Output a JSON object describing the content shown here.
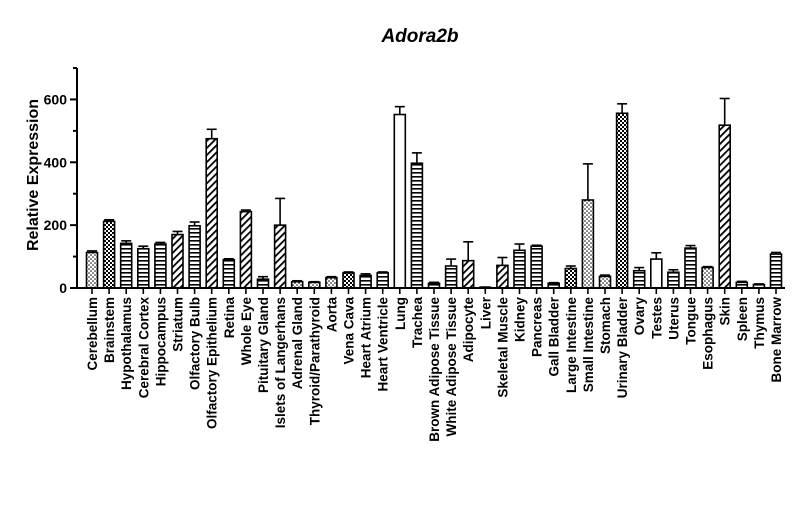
{
  "chart_data": {
    "type": "bar",
    "title": "Adora2b",
    "xlabel": "",
    "ylabel": "Relative Expression",
    "ylim": [
      0,
      700
    ],
    "yticks": [
      0,
      200,
      400,
      600
    ],
    "grid": false,
    "legend": "none",
    "colors": {
      "axis": "#000000",
      "bar_fill": "#ffffff",
      "pattern": "#000000"
    },
    "categories": [
      "Cerebellum",
      "Brainstem",
      "Hypothalamus",
      "Cerebral Cortex",
      "Hippocampus",
      "Striatum",
      "Olfactory Bulb",
      "Olfactory Epithelium",
      "Retina",
      "Whole Eye",
      "Pituitary Gland",
      "Islets of Langerhans",
      "Adrenal Gland",
      "Thyroid/Parathyroid",
      "Aorta",
      "Vena Cava",
      "Heart Atrium",
      "Heart Ventricle",
      "Lung",
      "Trachea",
      "Brown Adipose Tissue",
      "White Adipose Tissue",
      "Adipocyte",
      "Liver",
      "Skeletal Muscle",
      "Kidney",
      "Pancreas",
      "Gall Bladder",
      "Large Intestine",
      "Small Intestine",
      "Stomach",
      "Urinary Bladder",
      "Ovary",
      "Testes",
      "Uterus",
      "Tongue",
      "Esophagus",
      "Skin",
      "Spleen",
      "Thymus",
      "Bone Marrow"
    ],
    "values": [
      113,
      212,
      142,
      125,
      140,
      170,
      198,
      475,
      90,
      243,
      28,
      200,
      20,
      18,
      33,
      48,
      40,
      48,
      552,
      397,
      15,
      70,
      87,
      2,
      72,
      120,
      133,
      15,
      62,
      280,
      37,
      556,
      55,
      92,
      50,
      127,
      65,
      518,
      18,
      11,
      108
    ],
    "errors": [
      5,
      5,
      8,
      8,
      5,
      10,
      12,
      30,
      3,
      5,
      8,
      85,
      3,
      2,
      3,
      3,
      5,
      3,
      25,
      33,
      3,
      22,
      60,
      1,
      25,
      20,
      3,
      2,
      8,
      115,
      4,
      30,
      10,
      20,
      8,
      8,
      3,
      85,
      3,
      2,
      5
    ],
    "patterns": [
      "dots",
      "checker",
      "hlines",
      "hlines",
      "hlines",
      "diag",
      "hlines",
      "diag",
      "hlines",
      "diag",
      "hlines",
      "diag",
      "dots",
      "dots",
      "dots",
      "checker",
      "hlines",
      "hlines",
      "none",
      "hlines",
      "hlines",
      "hlines",
      "diag",
      "none",
      "diag",
      "hlines",
      "hlines",
      "hlines",
      "checker",
      "dots",
      "dots",
      "checker",
      "hlines",
      "none",
      "hlines",
      "hlines",
      "dots",
      "diag",
      "hlines",
      "hlines",
      "hlines"
    ]
  }
}
